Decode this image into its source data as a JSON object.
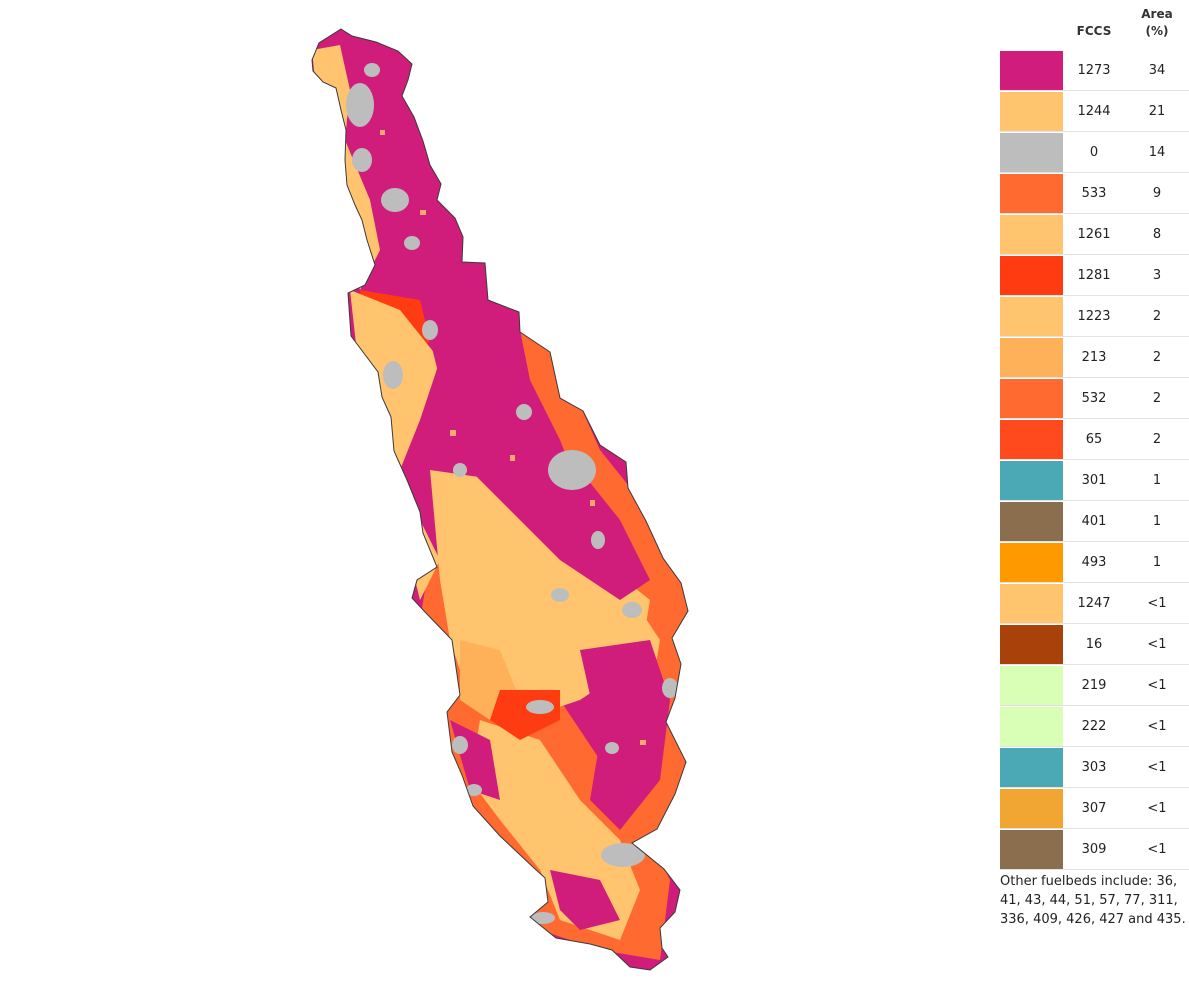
{
  "legend": {
    "header_code": "FCCS",
    "header_area_line1": "Area",
    "header_area_line2": "(%)",
    "rows": [
      {
        "code": "1273",
        "area": "34",
        "color": "#d01c7a"
      },
      {
        "code": "1244",
        "area": "21",
        "color": "#ffc46d"
      },
      {
        "code": "0",
        "area": "14",
        "color": "#bdbdbd"
      },
      {
        "code": "533",
        "area": "9",
        "color": "#ff6a30"
      },
      {
        "code": "1261",
        "area": "8",
        "color": "#ffc46d"
      },
      {
        "code": "1281",
        "area": "3",
        "color": "#ff3b12"
      },
      {
        "code": "1223",
        "area": "2",
        "color": "#ffc46d"
      },
      {
        "code": "213",
        "area": "2",
        "color": "#ffb15a"
      },
      {
        "code": "532",
        "area": "2",
        "color": "#ff6a30"
      },
      {
        "code": "65",
        "area": "2",
        "color": "#ff4a1e"
      },
      {
        "code": "301",
        "area": "1",
        "color": "#4ba9b6"
      },
      {
        "code": "401",
        "area": "1",
        "color": "#8b6e4e"
      },
      {
        "code": "493",
        "area": "1",
        "color": "#ff9900"
      },
      {
        "code": "1247",
        "area": "<1",
        "color": "#ffc46d"
      },
      {
        "code": "16",
        "area": "<1",
        "color": "#a8420a"
      },
      {
        "code": "219",
        "area": "<1",
        "color": "#d9ffb6"
      },
      {
        "code": "222",
        "area": "<1",
        "color": "#d9ffb6"
      },
      {
        "code": "303",
        "area": "<1",
        "color": "#4ba9b6"
      },
      {
        "code": "307",
        "area": "<1",
        "color": "#f1a533"
      },
      {
        "code": "309",
        "area": "<1",
        "color": "#8b6e4e"
      }
    ],
    "other_note": "Other fuelbeds include: 36, 41, 43, 44, 51, 57, 77, 311, 336, 409, 426, 427 and 435."
  }
}
